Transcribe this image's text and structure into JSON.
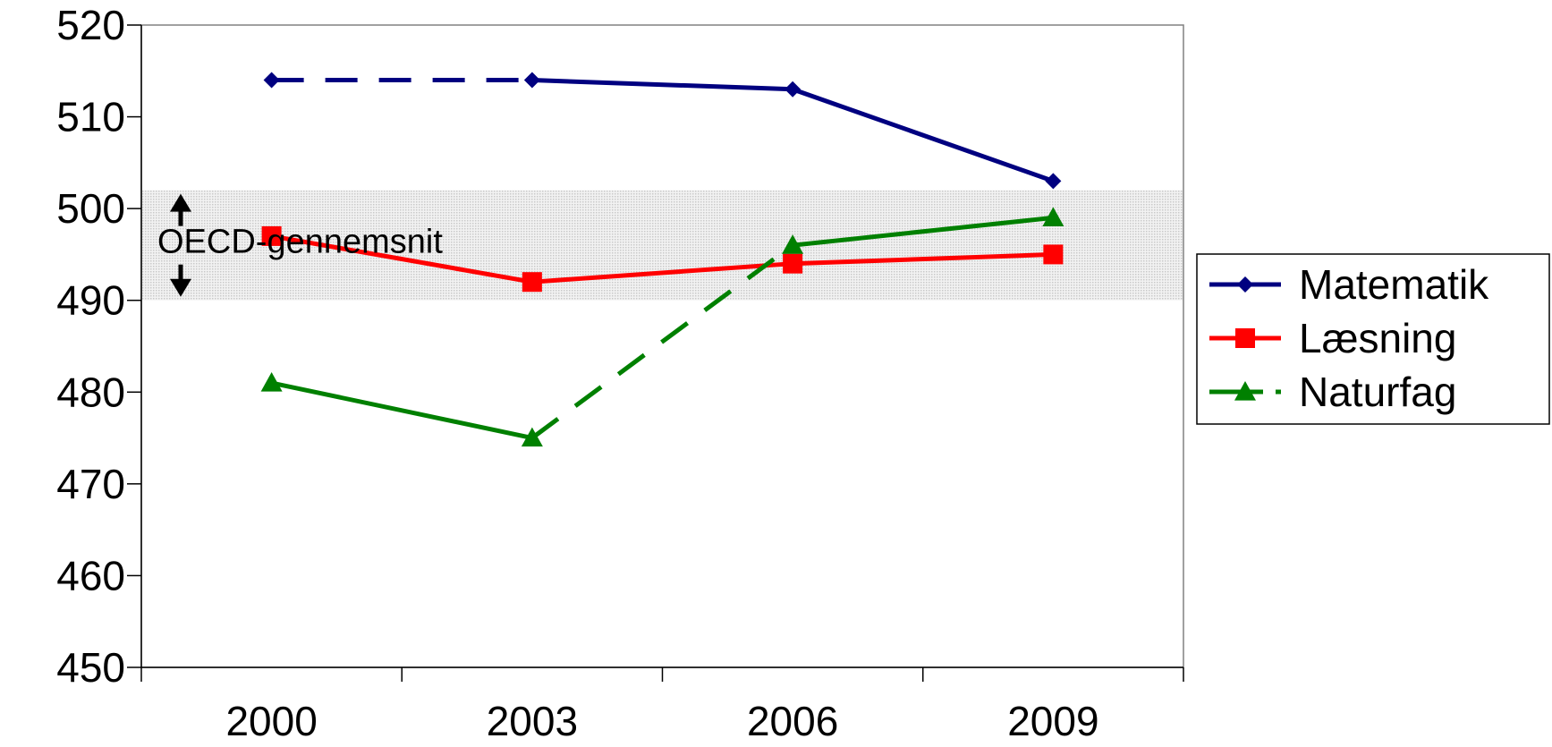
{
  "chart_data": {
    "type": "line",
    "categories": [
      "2000",
      "2003",
      "2006",
      "2009"
    ],
    "ylim": [
      450,
      520
    ],
    "yticks": [
      450,
      460,
      470,
      480,
      490,
      500,
      510,
      520
    ],
    "grid": false,
    "legend_position": "right",
    "band": {
      "label": "OECD-gennemsnit",
      "from": 490,
      "to": 502
    },
    "series": [
      {
        "name": "Matematik",
        "values": [
          514,
          514,
          513,
          503
        ],
        "color": "#000080",
        "marker": "diamond",
        "dashed_segments": [
          0
        ]
      },
      {
        "name": "Læsning",
        "values": [
          497,
          492,
          494,
          495
        ],
        "color": "#ff0000",
        "marker": "square",
        "dashed_segments": []
      },
      {
        "name": "Naturfag",
        "values": [
          481,
          475,
          496,
          499
        ],
        "color": "#008000",
        "marker": "triangle",
        "dashed_segments": [
          1
        ]
      }
    ]
  }
}
